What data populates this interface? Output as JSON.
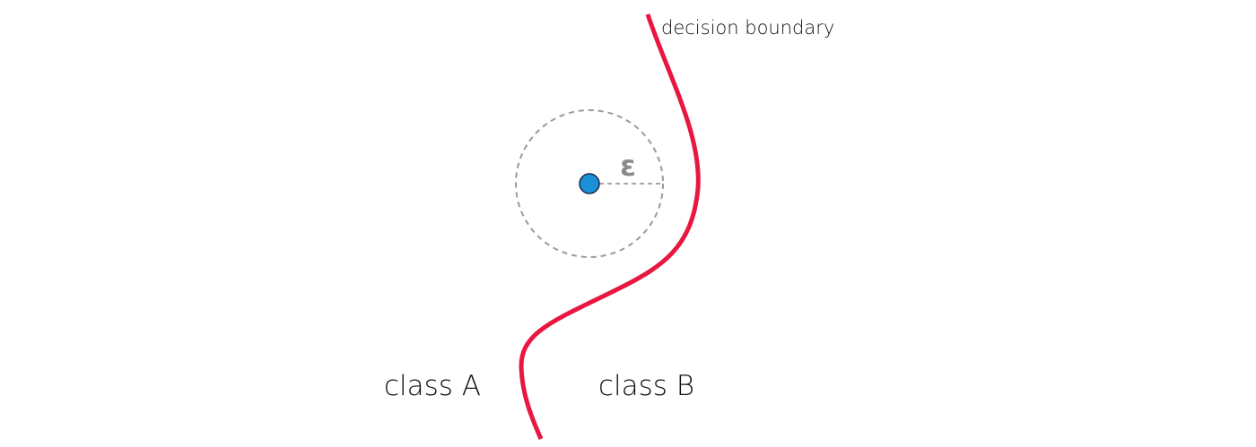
{
  "diagram": {
    "boundary_label": "decision boundary",
    "epsilon_label": "ε",
    "class_a_label": "class A",
    "class_b_label": "class B",
    "colors": {
      "boundary": "#e8173f",
      "point_fill": "#1b8fd8",
      "point_stroke": "#1a2a44",
      "neighborhood": "#9a9a9a",
      "text": "#111111",
      "epsilon": "#8a8a8a"
    }
  }
}
